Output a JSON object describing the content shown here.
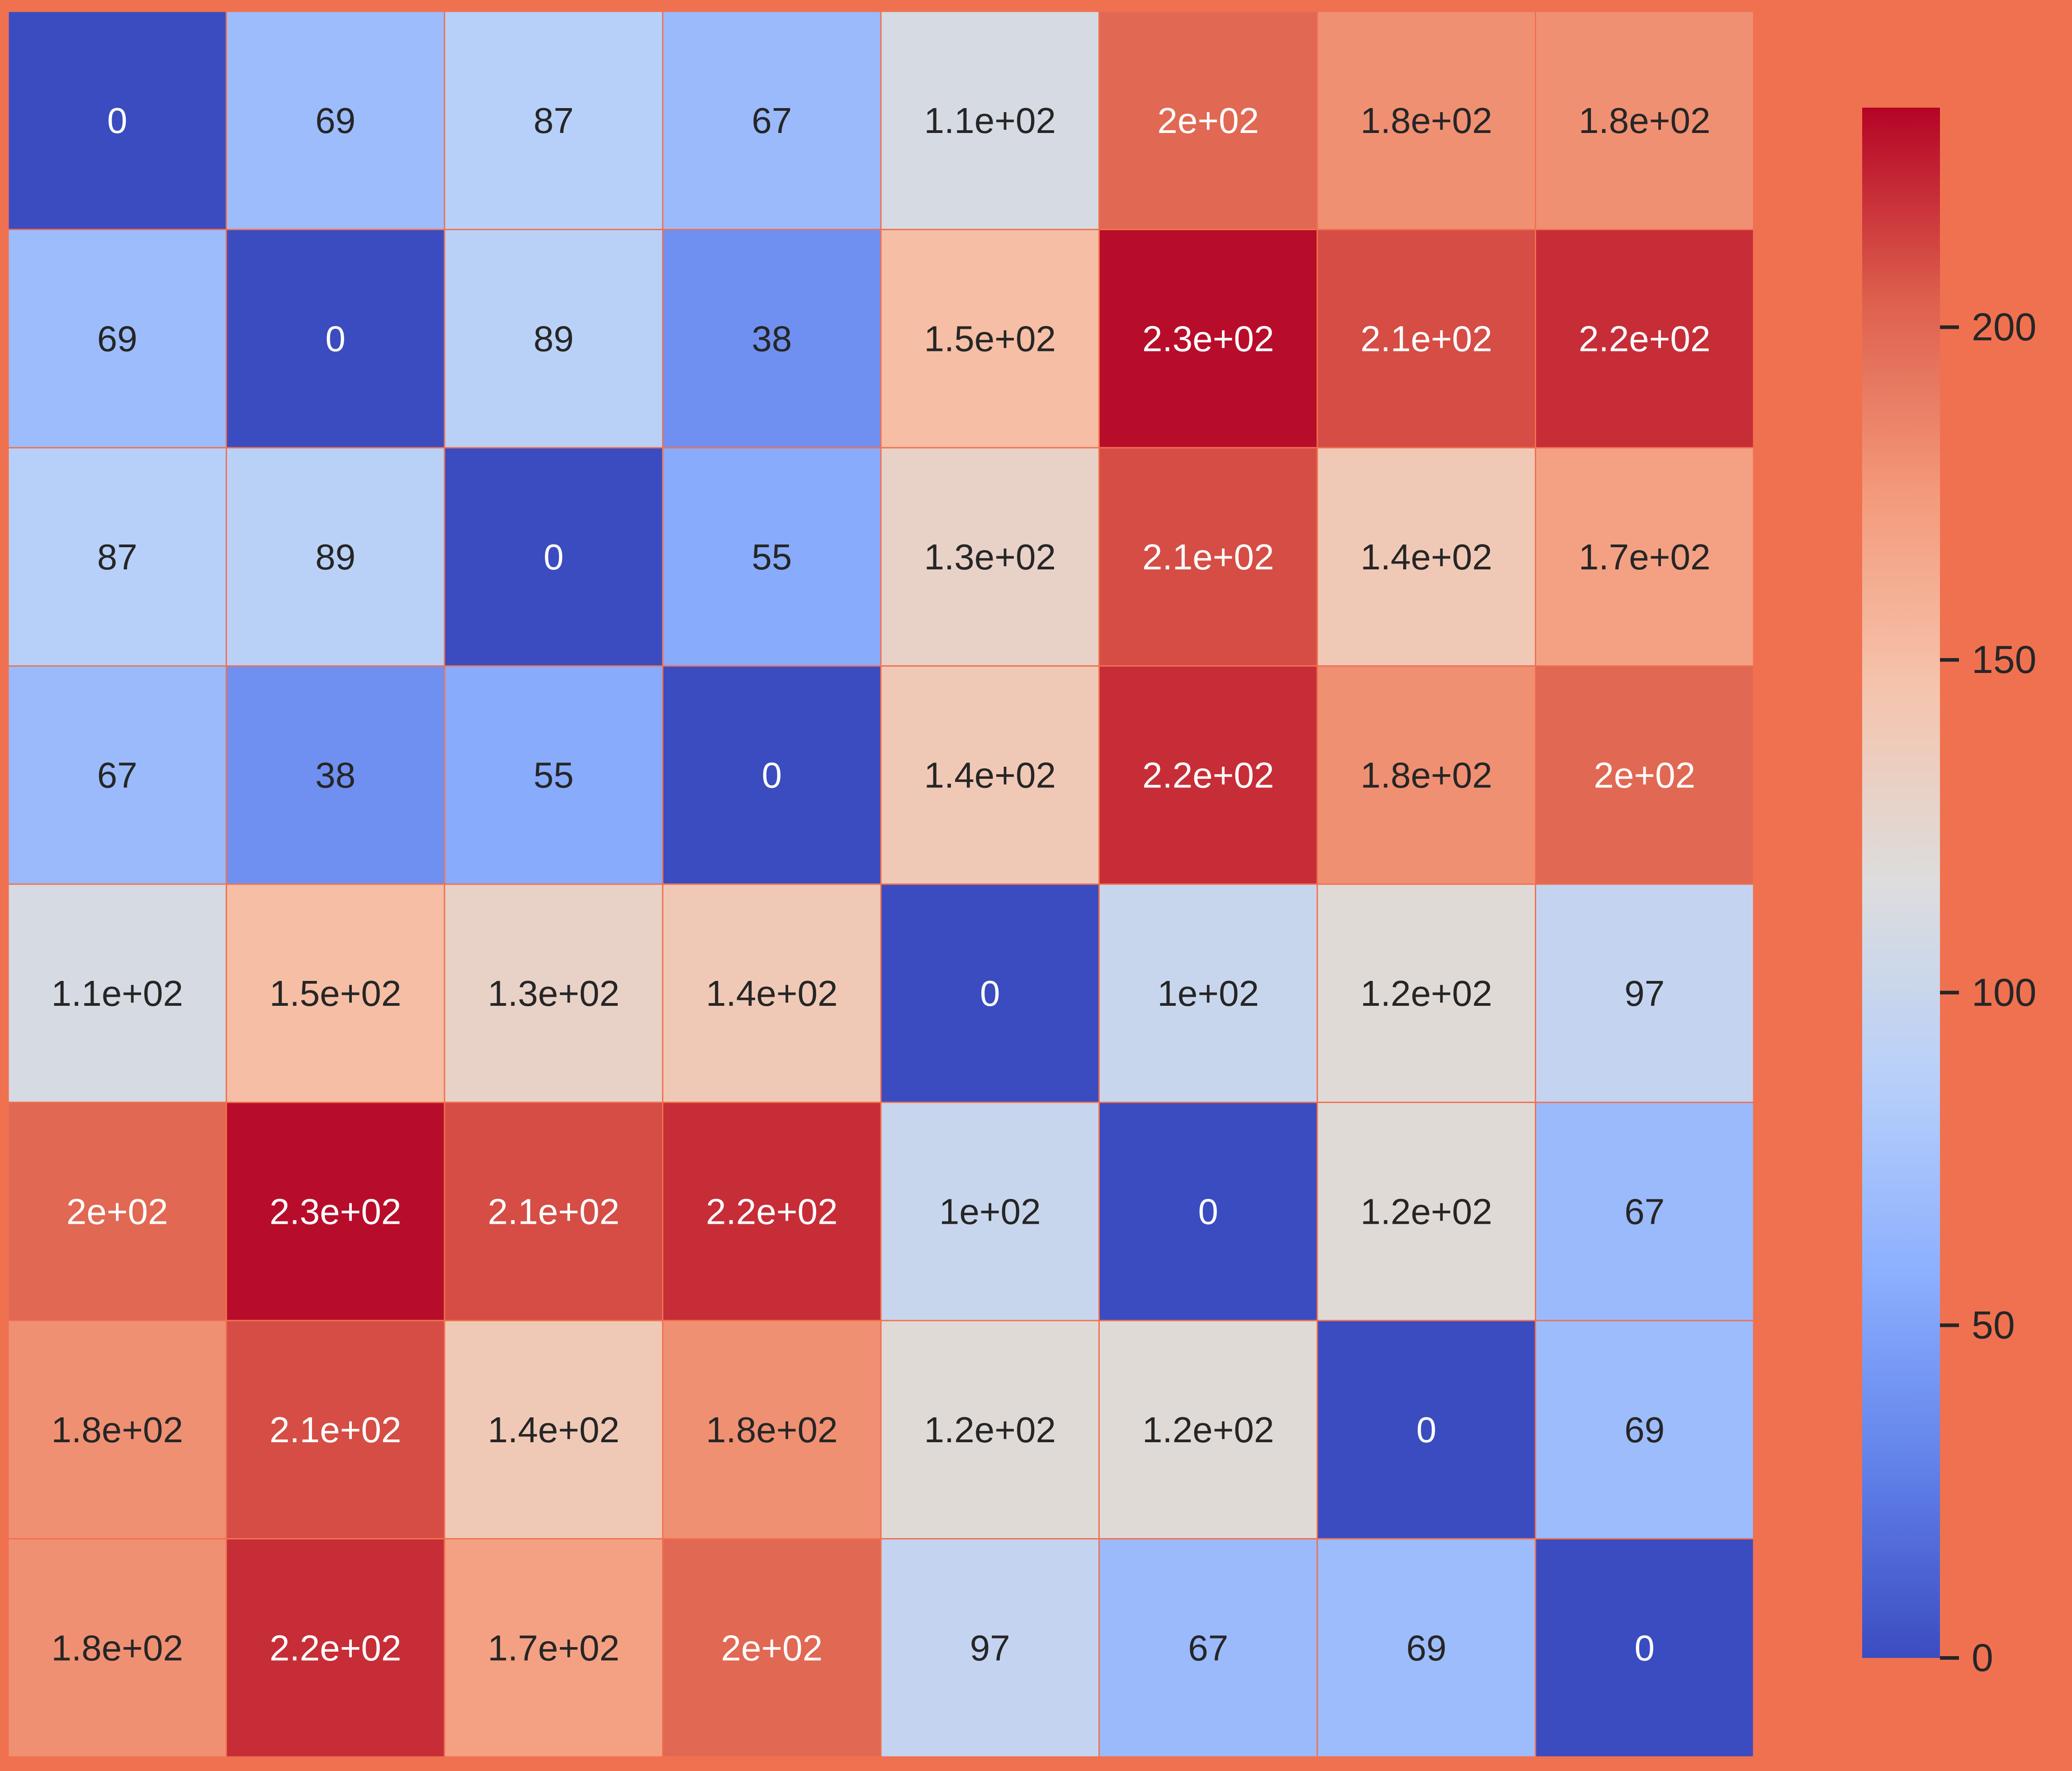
{
  "chart_data": {
    "type": "heatmap",
    "colormap": "coolwarm",
    "vmin": 0,
    "vmax": 233,
    "matrix": [
      [
        0,
        69,
        87,
        67,
        110,
        200,
        180,
        180
      ],
      [
        69,
        0,
        89,
        38,
        150,
        230,
        210,
        220
      ],
      [
        87,
        89,
        0,
        55,
        130,
        210,
        140,
        170
      ],
      [
        67,
        38,
        55,
        0,
        140,
        220,
        180,
        200
      ],
      [
        110,
        150,
        130,
        140,
        0,
        100,
        120,
        97
      ],
      [
        200,
        230,
        210,
        220,
        100,
        0,
        120,
        67
      ],
      [
        180,
        210,
        140,
        180,
        120,
        120,
        0,
        69
      ],
      [
        180,
        220,
        170,
        200,
        97,
        67,
        69,
        0
      ]
    ],
    "annotations": [
      [
        "0",
        "69",
        "87",
        "67",
        "1.1e+02",
        "2e+02",
        "1.8e+02",
        "1.8e+02"
      ],
      [
        "69",
        "0",
        "89",
        "38",
        "1.5e+02",
        "2.3e+02",
        "2.1e+02",
        "2.2e+02"
      ],
      [
        "87",
        "89",
        "0",
        "55",
        "1.3e+02",
        "2.1e+02",
        "1.4e+02",
        "1.7e+02"
      ],
      [
        "67",
        "38",
        "55",
        "0",
        "1.4e+02",
        "2.2e+02",
        "1.8e+02",
        "2e+02"
      ],
      [
        "1.1e+02",
        "1.5e+02",
        "1.3e+02",
        "1.4e+02",
        "0",
        "1e+02",
        "1.2e+02",
        "97"
      ],
      [
        "2e+02",
        "2.3e+02",
        "2.1e+02",
        "2.2e+02",
        "1e+02",
        "0",
        "1.2e+02",
        "67"
      ],
      [
        "1.8e+02",
        "2.1e+02",
        "1.4e+02",
        "1.8e+02",
        "1.2e+02",
        "1.2e+02",
        "0",
        "69"
      ],
      [
        "1.8e+02",
        "2.2e+02",
        "1.7e+02",
        "2e+02",
        "97",
        "67",
        "69",
        "0"
      ]
    ],
    "colorbar": {
      "ticks": [
        0,
        50,
        100,
        150,
        200
      ],
      "tick_labels": [
        "0",
        "50",
        "100",
        "150",
        "200"
      ]
    },
    "xlabel": "",
    "ylabel": "",
    "title": ""
  },
  "colors": {
    "background": "#F07150",
    "cell_border": "#F07150",
    "label_dark": "#262626",
    "label_light": "#FFFFFF"
  }
}
